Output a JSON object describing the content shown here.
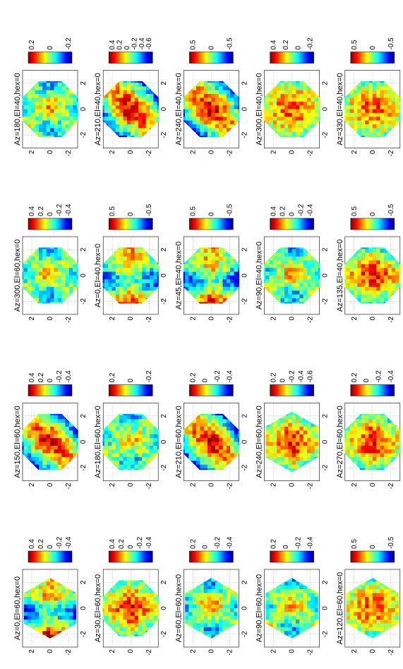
{
  "layout_note": "Figure is rotated 90 degrees (landscape page shown in portrait).",
  "colormap": "jet",
  "colors": {
    "jet": [
      "#00007f",
      "#0000ff",
      "#007fff",
      "#00ffff",
      "#7fff7f",
      "#ffff00",
      "#ff7f00",
      "#ff0000",
      "#7f0000"
    ]
  },
  "chart_data": [
    {
      "type": "heatmap",
      "title": "Az=0,El=60,hex=0",
      "shape": "hexagon",
      "xticks": [
        "-2",
        "0",
        "2"
      ],
      "yticks": [
        "2",
        "0",
        "-2"
      ],
      "colorbar": [
        "0.4",
        "0.2",
        "0",
        "-0.2",
        "-0.4"
      ],
      "clim": [
        -0.5,
        0.5
      ],
      "pattern": "cross"
    },
    {
      "type": "heatmap",
      "title": "Az=30,El=60,hex=0",
      "shape": "octagon",
      "xticks": [
        "-2",
        "0",
        "2"
      ],
      "yticks": [
        "2",
        "0",
        "-2"
      ],
      "colorbar": [
        "0.4",
        "0.2",
        "0",
        "-0.2",
        "-0.4"
      ],
      "clim": [
        -0.5,
        0.5
      ],
      "pattern": "xband"
    },
    {
      "type": "heatmap",
      "title": "Az=60,El=60,hex=0",
      "shape": "hexagon",
      "xticks": [
        "-2",
        "0",
        "2"
      ],
      "yticks": [
        "2",
        "0",
        "-2"
      ],
      "colorbar": [
        "0.2",
        "0",
        "-0.2",
        "-0.4"
      ],
      "clim": [
        -0.45,
        0.3
      ],
      "pattern": "mottled"
    },
    {
      "type": "heatmap",
      "title": "Az=90,El=60,hex=0",
      "shape": "hexagon",
      "xticks": [
        "-2",
        "0",
        "2"
      ],
      "yticks": [
        "2",
        "0",
        "-2"
      ],
      "colorbar": [
        "0.2",
        "0",
        "-0.2",
        "-0.4"
      ],
      "clim": [
        -0.45,
        0.3
      ],
      "pattern": "mottled"
    },
    {
      "type": "heatmap",
      "title": "Az=120,El=60,hex=0",
      "shape": "hexagon",
      "xticks": [
        "-2",
        "0",
        "2"
      ],
      "yticks": [
        "2",
        "0",
        "-2"
      ],
      "colorbar": [
        "0.5",
        "0",
        "-0.5"
      ],
      "clim": [
        -0.6,
        0.6
      ],
      "pattern": "smooth"
    },
    {
      "type": "heatmap",
      "title": "Az=150,El=60,hex=0",
      "shape": "octagon",
      "xticks": [
        "-2",
        "0",
        "2"
      ],
      "yticks": [
        "2",
        "0",
        "-2"
      ],
      "colorbar": [
        "0.4",
        "0.2",
        "0",
        "-0.2",
        "-0.4"
      ],
      "clim": [
        -0.5,
        0.5
      ],
      "pattern": "diag"
    },
    {
      "type": "heatmap",
      "title": "Az=180,El=60,hex=0",
      "shape": "octagon",
      "xticks": [
        "-2",
        "0",
        "2"
      ],
      "yticks": [
        "2",
        "0",
        "-2"
      ],
      "colorbar": [
        "0.2",
        "0",
        "-0.2"
      ],
      "clim": [
        -0.3,
        0.3
      ],
      "pattern": "mottled"
    },
    {
      "type": "heatmap",
      "title": "Az=210,El=60,hex=0",
      "shape": "octagon",
      "xticks": [
        "-2",
        "0",
        "2"
      ],
      "yticks": [
        "2",
        "0",
        "-2"
      ],
      "colorbar": [
        "0.2",
        "0",
        "-0.2",
        "-0.4"
      ],
      "clim": [
        -0.45,
        0.3
      ],
      "pattern": "diag"
    },
    {
      "type": "heatmap",
      "title": "Az=240,El=60,hex=0",
      "shape": "hexagon",
      "xticks": [
        "-2",
        "0",
        "2"
      ],
      "yticks": [
        "2",
        "0",
        "-2"
      ],
      "colorbar": [
        "0.2",
        "0",
        "-0.2",
        "-0.4",
        "-0.6"
      ],
      "clim": [
        -0.65,
        0.3
      ],
      "pattern": "xband"
    },
    {
      "type": "heatmap",
      "title": "Az=270,El=60,hex=0",
      "shape": "octagon",
      "xticks": [
        "-2",
        "0",
        "2"
      ],
      "yticks": [
        "2",
        "0",
        "-2"
      ],
      "colorbar": [
        "0.2",
        "0",
        "-0.2",
        "-0.4"
      ],
      "clim": [
        -0.45,
        0.3
      ],
      "pattern": "xband"
    },
    {
      "type": "heatmap",
      "title": "Az=300,El=60,hex=0",
      "shape": "octagon",
      "xticks": [
        "-2",
        "0",
        "2"
      ],
      "yticks": [
        "2",
        "0",
        "-2"
      ],
      "colorbar": [
        "0.4",
        "0.2",
        "0",
        "-0.2",
        "-0.4"
      ],
      "clim": [
        -0.5,
        0.5
      ],
      "pattern": "mottled"
    },
    {
      "type": "heatmap",
      "title": "Az=0,El=40,hex=0",
      "shape": "octagon",
      "xticks": [
        "-2",
        "0",
        "2"
      ],
      "yticks": [
        "2",
        "0",
        "-2"
      ],
      "colorbar": [
        "0.5",
        "0",
        "-0.5"
      ],
      "clim": [
        -0.6,
        0.6
      ],
      "pattern": "cross"
    },
    {
      "type": "heatmap",
      "title": "Az=45,El=40,hex=0",
      "shape": "octagon",
      "xticks": [
        "-2",
        "0",
        "2"
      ],
      "yticks": [
        "2",
        "0",
        "-2"
      ],
      "colorbar": [
        "0.5",
        "0",
        "-0.5"
      ],
      "clim": [
        -0.6,
        0.6
      ],
      "pattern": "cross"
    },
    {
      "type": "heatmap",
      "title": "Az=90,El=40,hex=0",
      "shape": "octagon",
      "xticks": [
        "-2",
        "0",
        "2"
      ],
      "yticks": [
        "2",
        "0",
        "-2"
      ],
      "colorbar": [
        "0.4",
        "0.2",
        "0",
        "-0.2",
        "-0.4"
      ],
      "clim": [
        -0.5,
        0.5
      ],
      "pattern": "mottled"
    },
    {
      "type": "heatmap",
      "title": "Az=135,El=40,hex=0",
      "shape": "octagon",
      "xticks": [
        "-2",
        "0",
        "2"
      ],
      "yticks": [
        "2",
        "0",
        "-2"
      ],
      "colorbar": [
        "0.5",
        "0",
        "-0.5"
      ],
      "clim": [
        -0.6,
        0.6
      ],
      "pattern": "xband"
    },
    {
      "type": "heatmap",
      "title": "Az=180,El=40,hex=0",
      "shape": "octagon",
      "xticks": [
        "-2",
        "0",
        "2"
      ],
      "yticks": [
        "2",
        "0",
        "-2"
      ],
      "colorbar": [
        "0.2",
        "0",
        "-0.2"
      ],
      "clim": [
        -0.3,
        0.3
      ],
      "pattern": "mottled"
    },
    {
      "type": "heatmap",
      "title": "Az=210,El=40,hex=0",
      "shape": "octagon",
      "xticks": [
        "-2",
        "0",
        "2"
      ],
      "yticks": [
        "2",
        "0",
        "-2"
      ],
      "colorbar": [
        "0.4",
        "0.2",
        "0",
        "-0.2",
        "-0.4",
        "-0.6"
      ],
      "clim": [
        -0.7,
        0.5
      ],
      "pattern": "diag"
    },
    {
      "type": "heatmap",
      "title": "Az=240,El=40,hex=0",
      "shape": "octagon",
      "xticks": [
        "-2",
        "0",
        "2"
      ],
      "yticks": [
        "2",
        "0",
        "-2"
      ],
      "colorbar": [
        "0.5",
        "0",
        "-0.5"
      ],
      "clim": [
        -0.6,
        0.6
      ],
      "pattern": "diag"
    },
    {
      "type": "heatmap",
      "title": "Az=300,El=40,hex=0",
      "shape": "octagon",
      "xticks": [
        "-2",
        "0",
        "2"
      ],
      "yticks": [
        "2",
        "0",
        "-2"
      ],
      "colorbar": [
        "0.4",
        "0.2",
        "0",
        "-0.2"
      ],
      "clim": [
        -0.3,
        0.5
      ],
      "pattern": "smooth"
    },
    {
      "type": "heatmap",
      "title": "Az=330,El=40,hex=0",
      "shape": "octagon",
      "xticks": [
        "-2",
        "0",
        "2"
      ],
      "yticks": [
        "2",
        "0",
        "-2"
      ],
      "colorbar": [
        "0.5",
        "0",
        "-0.5"
      ],
      "clim": [
        -0.6,
        0.6
      ],
      "pattern": "smooth"
    }
  ]
}
